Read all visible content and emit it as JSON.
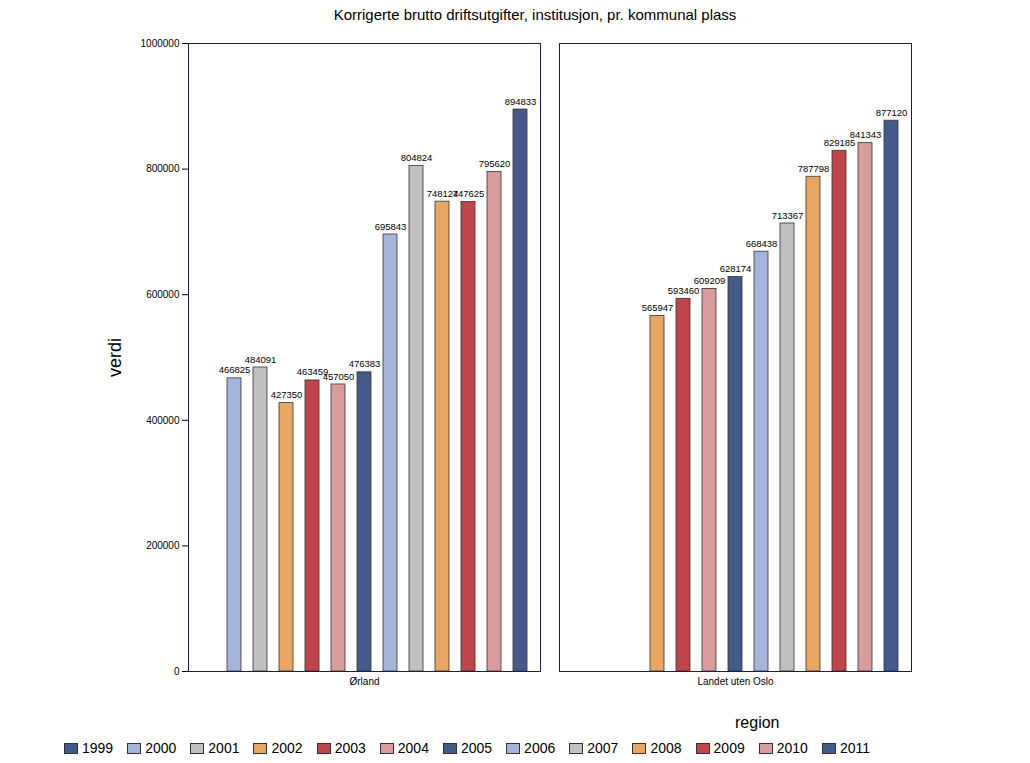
{
  "chart_data": {
    "type": "bar",
    "title": "Korrigerte brutto driftsutgifter, institusjon, pr. kommunal plass",
    "x_label": "region",
    "y_label": "verdi",
    "categories": [
      "Ørland",
      "Landet uten Oslo"
    ],
    "series": [
      {
        "name": "1999",
        "color": "#435a8a",
        "values": [
          null,
          null
        ]
      },
      {
        "name": "2000",
        "color": "#a5b5d9",
        "values": [
          466825,
          null
        ]
      },
      {
        "name": "2001",
        "color": "#c0c0c0",
        "values": [
          484091,
          null
        ]
      },
      {
        "name": "2002",
        "color": "#e9a660",
        "values": [
          427350,
          565947
        ]
      },
      {
        "name": "2003",
        "color": "#c2444b",
        "values": [
          463459,
          593460
        ]
      },
      {
        "name": "2004",
        "color": "#d99b9b",
        "values": [
          457050,
          609209
        ]
      },
      {
        "name": "2005",
        "color": "#435a8a",
        "values": [
          476383,
          628174
        ]
      },
      {
        "name": "2006",
        "color": "#a5b5d9",
        "values": [
          695843,
          668438
        ]
      },
      {
        "name": "2007",
        "color": "#c0c0c0",
        "values": [
          804824,
          713367
        ]
      },
      {
        "name": "2008",
        "color": "#e9a660",
        "values": [
          748124,
          787798
        ]
      },
      {
        "name": "2009",
        "color": "#c2444b",
        "values": [
          747625,
          829185
        ]
      },
      {
        "name": "2010",
        "color": "#d99b9b",
        "values": [
          795620,
          841343
        ]
      },
      {
        "name": "2011",
        "color": "#435a8a",
        "values": [
          894833,
          877120
        ]
      }
    ],
    "ylim": [
      0,
      1000000
    ],
    "yticks": [
      0,
      200000,
      400000,
      600000,
      800000,
      1000000
    ],
    "data_labels": true,
    "legend": "bottom",
    "grid": false
  }
}
